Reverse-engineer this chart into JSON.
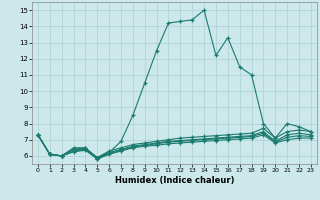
{
  "xlabel": "Humidex (Indice chaleur)",
  "xlim": [
    -0.5,
    23.5
  ],
  "ylim": [
    5.5,
    15.5
  ],
  "yticks": [
    6,
    7,
    8,
    9,
    10,
    11,
    12,
    13,
    14,
    15
  ],
  "xticks": [
    0,
    1,
    2,
    3,
    4,
    5,
    6,
    7,
    8,
    9,
    10,
    11,
    12,
    13,
    14,
    15,
    16,
    17,
    18,
    19,
    20,
    21,
    22,
    23
  ],
  "bg_color": "#cce8eb",
  "grid_color": "#aad0d4",
  "line_color": "#1a7a6e",
  "line1": [
    7.3,
    6.1,
    6.0,
    6.5,
    6.5,
    5.8,
    6.2,
    6.9,
    8.5,
    10.5,
    12.5,
    14.2,
    14.3,
    14.4,
    15.0,
    12.2,
    13.3,
    11.5,
    11.0,
    8.0,
    7.1,
    8.0,
    7.8,
    7.5
  ],
  "line2": [
    7.3,
    6.1,
    6.0,
    6.4,
    6.5,
    5.9,
    6.3,
    6.5,
    6.7,
    6.8,
    6.9,
    7.0,
    7.1,
    7.15,
    7.2,
    7.25,
    7.3,
    7.35,
    7.4,
    7.7,
    7.1,
    7.5,
    7.6,
    7.5
  ],
  "line3": [
    7.3,
    6.1,
    6.0,
    6.4,
    6.4,
    5.9,
    6.2,
    6.4,
    6.6,
    6.7,
    6.8,
    6.9,
    6.95,
    7.0,
    7.05,
    7.1,
    7.15,
    7.2,
    7.25,
    7.5,
    6.9,
    7.3,
    7.4,
    7.3
  ],
  "line4": [
    7.3,
    6.1,
    6.0,
    6.3,
    6.4,
    5.85,
    6.15,
    6.35,
    6.55,
    6.65,
    6.75,
    6.85,
    6.9,
    6.95,
    7.0,
    7.05,
    7.1,
    7.15,
    7.2,
    7.4,
    6.85,
    7.15,
    7.25,
    7.2
  ],
  "line5": [
    7.3,
    6.1,
    6.0,
    6.25,
    6.35,
    5.8,
    6.1,
    6.3,
    6.5,
    6.6,
    6.65,
    6.75,
    6.8,
    6.85,
    6.9,
    6.95,
    7.0,
    7.05,
    7.1,
    7.3,
    6.8,
    7.0,
    7.1,
    7.1
  ]
}
